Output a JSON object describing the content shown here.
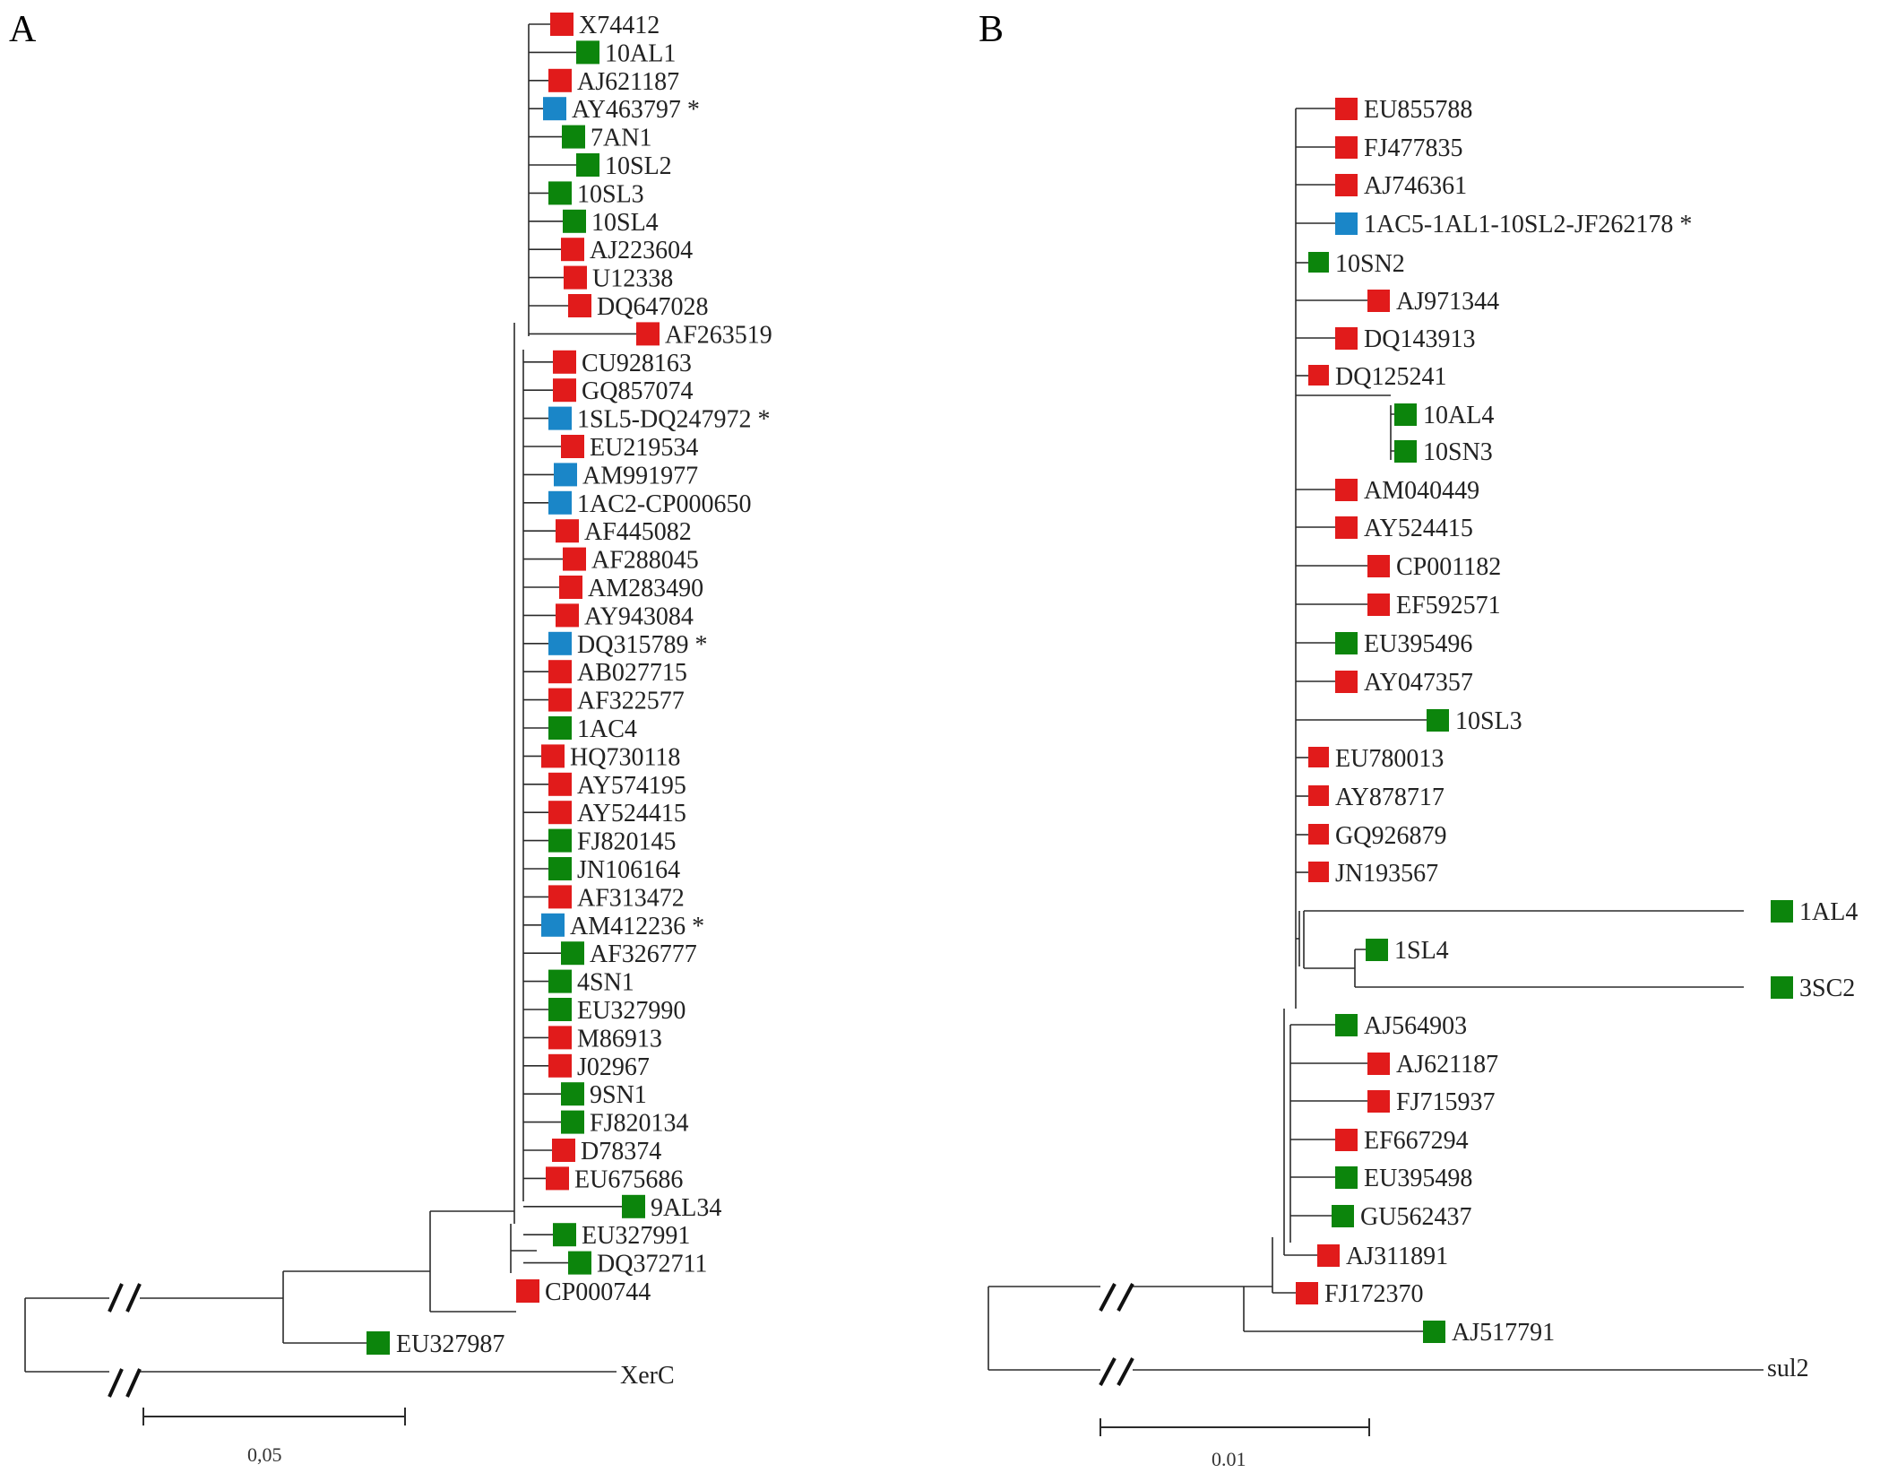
{
  "panels": {
    "A": {
      "label": "A",
      "scale_label": "0,05",
      "outgroup": "XerC",
      "outlier": "EU327987",
      "leaves": [
        {
          "name": "X74412",
          "color": "red"
        },
        {
          "name": "10AL1",
          "color": "green"
        },
        {
          "name": "AJ621187",
          "color": "red"
        },
        {
          "name": "AY463797 *",
          "color": "blue"
        },
        {
          "name": "7AN1",
          "color": "green"
        },
        {
          "name": "10SL2",
          "color": "green"
        },
        {
          "name": "10SL3",
          "color": "green"
        },
        {
          "name": "10SL4",
          "color": "green"
        },
        {
          "name": "AJ223604",
          "color": "red"
        },
        {
          "name": "U12338",
          "color": "red"
        },
        {
          "name": "DQ647028",
          "color": "red"
        },
        {
          "name": "AF263519",
          "color": "red"
        },
        {
          "name": "CU928163",
          "color": "red"
        },
        {
          "name": "GQ857074",
          "color": "red"
        },
        {
          "name": "1SL5-DQ247972 *",
          "color": "blue"
        },
        {
          "name": "EU219534",
          "color": "red"
        },
        {
          "name": "AM991977",
          "color": "blue"
        },
        {
          "name": "1AC2-CP000650",
          "color": "blue"
        },
        {
          "name": "AF445082",
          "color": "red"
        },
        {
          "name": "AF288045",
          "color": "red"
        },
        {
          "name": "AM283490",
          "color": "red"
        },
        {
          "name": "AY943084",
          "color": "red"
        },
        {
          "name": "DQ315789 *",
          "color": "blue"
        },
        {
          "name": "AB027715",
          "color": "red"
        },
        {
          "name": "AF322577",
          "color": "red"
        },
        {
          "name": "1AC4",
          "color": "green"
        },
        {
          "name": "HQ730118",
          "color": "red"
        },
        {
          "name": "AY574195",
          "color": "red"
        },
        {
          "name": "AY524415",
          "color": "red"
        },
        {
          "name": "FJ820145",
          "color": "green"
        },
        {
          "name": "JN106164",
          "color": "green"
        },
        {
          "name": "AF313472",
          "color": "red"
        },
        {
          "name": "AM412236 *",
          "color": "blue"
        },
        {
          "name": "AF326777",
          "color": "green"
        },
        {
          "name": "4SN1",
          "color": "green"
        },
        {
          "name": "EU327990",
          "color": "green"
        },
        {
          "name": "M86913",
          "color": "red"
        },
        {
          "name": "J02967",
          "color": "red"
        },
        {
          "name": "9SN1",
          "color": "green"
        },
        {
          "name": "FJ820134",
          "color": "green"
        },
        {
          "name": "D78374",
          "color": "red"
        },
        {
          "name": "EU675686",
          "color": "red"
        },
        {
          "name": "9AL34",
          "color": "green"
        },
        {
          "name": "EU327991",
          "color": "green"
        },
        {
          "name": "DQ372711",
          "color": "green"
        },
        {
          "name": "CP000744",
          "color": "red"
        }
      ]
    },
    "B": {
      "label": "B",
      "scale_label": "0.01",
      "outgroup": "sul2",
      "leaves": [
        {
          "name": "EU855788",
          "color": "red"
        },
        {
          "name": "FJ477835",
          "color": "red"
        },
        {
          "name": "AJ746361",
          "color": "red"
        },
        {
          "name": "1AC5-1AL1-10SL2-JF262178 *",
          "color": "blue"
        },
        {
          "name": "10SN2",
          "color": "green"
        },
        {
          "name": "AJ971344",
          "color": "red"
        },
        {
          "name": "DQ143913",
          "color": "red"
        },
        {
          "name": "DQ125241",
          "color": "red"
        },
        {
          "name": "10AL4",
          "color": "green"
        },
        {
          "name": "10SN3",
          "color": "green"
        },
        {
          "name": "AM040449",
          "color": "red"
        },
        {
          "name": "AY524415",
          "color": "red"
        },
        {
          "name": "CP001182",
          "color": "red"
        },
        {
          "name": "EF592571",
          "color": "red"
        },
        {
          "name": "EU395496",
          "color": "green"
        },
        {
          "name": "AY047357",
          "color": "red"
        },
        {
          "name": "10SL3",
          "color": "green"
        },
        {
          "name": "EU780013",
          "color": "red"
        },
        {
          "name": "AY878717",
          "color": "red"
        },
        {
          "name": "GQ926879",
          "color": "red"
        },
        {
          "name": "JN193567",
          "color": "red"
        },
        {
          "name": "1AL4",
          "color": "green"
        },
        {
          "name": "1SL4",
          "color": "green"
        },
        {
          "name": "3SC2",
          "color": "green"
        },
        {
          "name": "AJ564903",
          "color": "green"
        },
        {
          "name": "AJ621187",
          "color": "red"
        },
        {
          "name": "FJ715937",
          "color": "red"
        },
        {
          "name": "EF667294",
          "color": "red"
        },
        {
          "name": "EU395498",
          "color": "green"
        },
        {
          "name": "GU562437",
          "color": "green"
        },
        {
          "name": "AJ311891",
          "color": "red"
        },
        {
          "name": "FJ172370",
          "color": "red"
        },
        {
          "name": "AJ517791",
          "color": "green"
        }
      ]
    }
  },
  "colors": {
    "red": "#e11b1b",
    "green": "#0c850c",
    "blue": "#1a86c8"
  }
}
